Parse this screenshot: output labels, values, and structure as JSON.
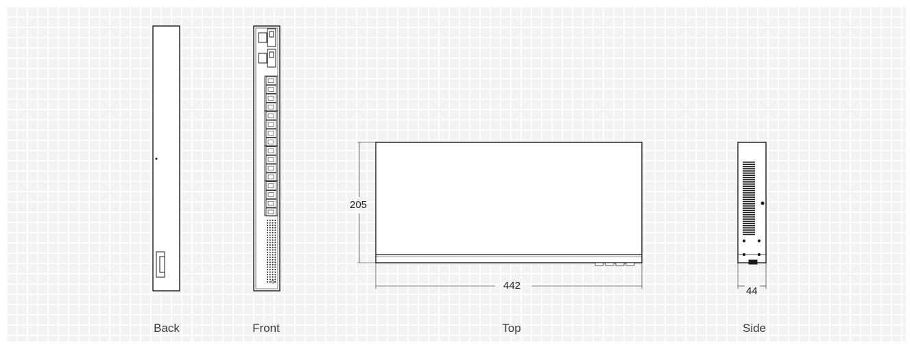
{
  "views": {
    "back": {
      "label": "Back"
    },
    "front": {
      "label": "Front"
    },
    "top": {
      "label": "Top"
    },
    "side": {
      "label": "Side"
    }
  },
  "dimensions": {
    "width": "442",
    "depth": "205",
    "height": "44"
  },
  "colors": {
    "background": "#ffffff",
    "grid_cell": "#f3f3f3",
    "line": "#1a1a1a",
    "text": "#3a3a3a"
  }
}
